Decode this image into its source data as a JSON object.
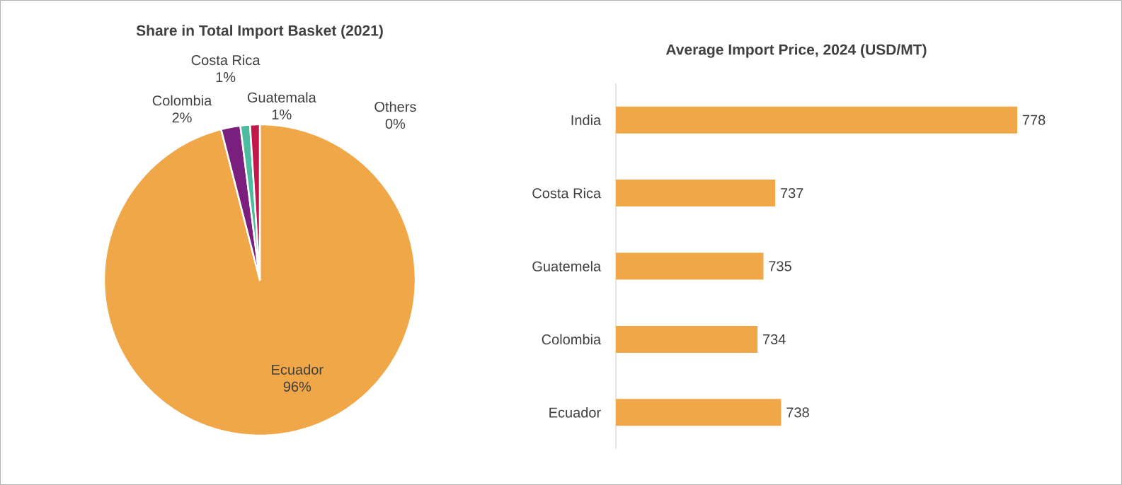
{
  "chart_data": [
    {
      "type": "pie",
      "title": "Share in Total Import Basket (2021)",
      "categories": [
        "Ecuador",
        "Colombia",
        "Costa Rica",
        "Guatemala",
        "Others"
      ],
      "values": [
        96,
        2,
        1,
        1,
        0
      ],
      "colors": [
        "#f0a748",
        "#7a1f7e",
        "#4dbb9f",
        "#c0184b",
        "#7f7f7f"
      ],
      "value_labels": [
        "96%",
        "2%",
        "1%",
        "1%",
        "0%"
      ]
    },
    {
      "type": "bar",
      "orientation": "horizontal",
      "title": "Average Import Price, 2024 (USD/MT)",
      "categories": [
        "India",
        "Costa Rica",
        "Guatemela",
        "Colombia",
        "Ecuador"
      ],
      "values": [
        778,
        737,
        735,
        734,
        738
      ],
      "color": "#f0a748",
      "xlim": [
        710,
        778
      ],
      "data_labels": true
    }
  ]
}
